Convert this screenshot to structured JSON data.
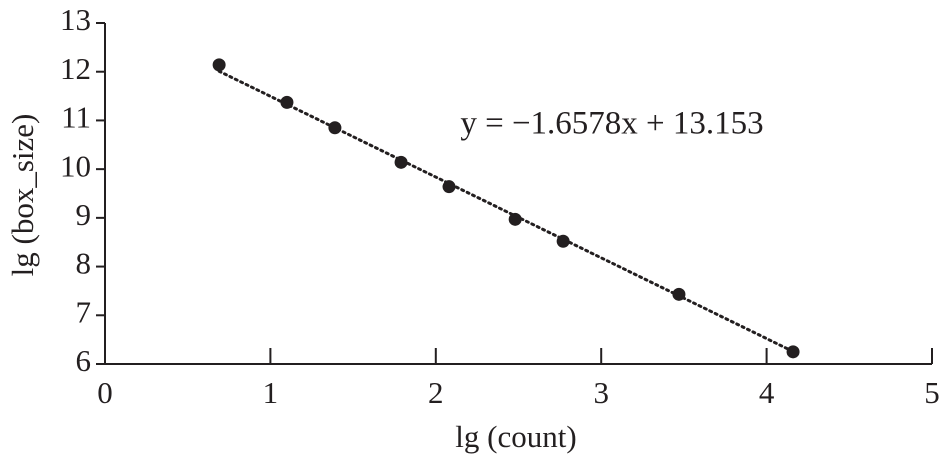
{
  "chart_data": {
    "type": "scatter",
    "x_label": "lg (count)",
    "y_label": "lg (box_size)",
    "x": [
      0.69,
      1.1,
      1.39,
      1.79,
      2.08,
      2.48,
      2.77,
      3.47,
      4.16
    ],
    "values": [
      12.14,
      11.37,
      10.85,
      10.14,
      9.64,
      8.97,
      8.52,
      7.43,
      6.25
    ],
    "color": "#231f20",
    "xlim": [
      0,
      5
    ],
    "xticks": [
      0,
      1,
      2,
      3,
      4,
      5
    ],
    "ylim": [
      6,
      13
    ],
    "yticks": [
      6,
      7,
      8,
      9,
      10,
      11,
      12,
      13
    ],
    "trendline": {
      "slope": -1.6578,
      "intercept": 13.153,
      "label": "y = −1.6578x + 13.153",
      "color": "#231f20"
    }
  }
}
